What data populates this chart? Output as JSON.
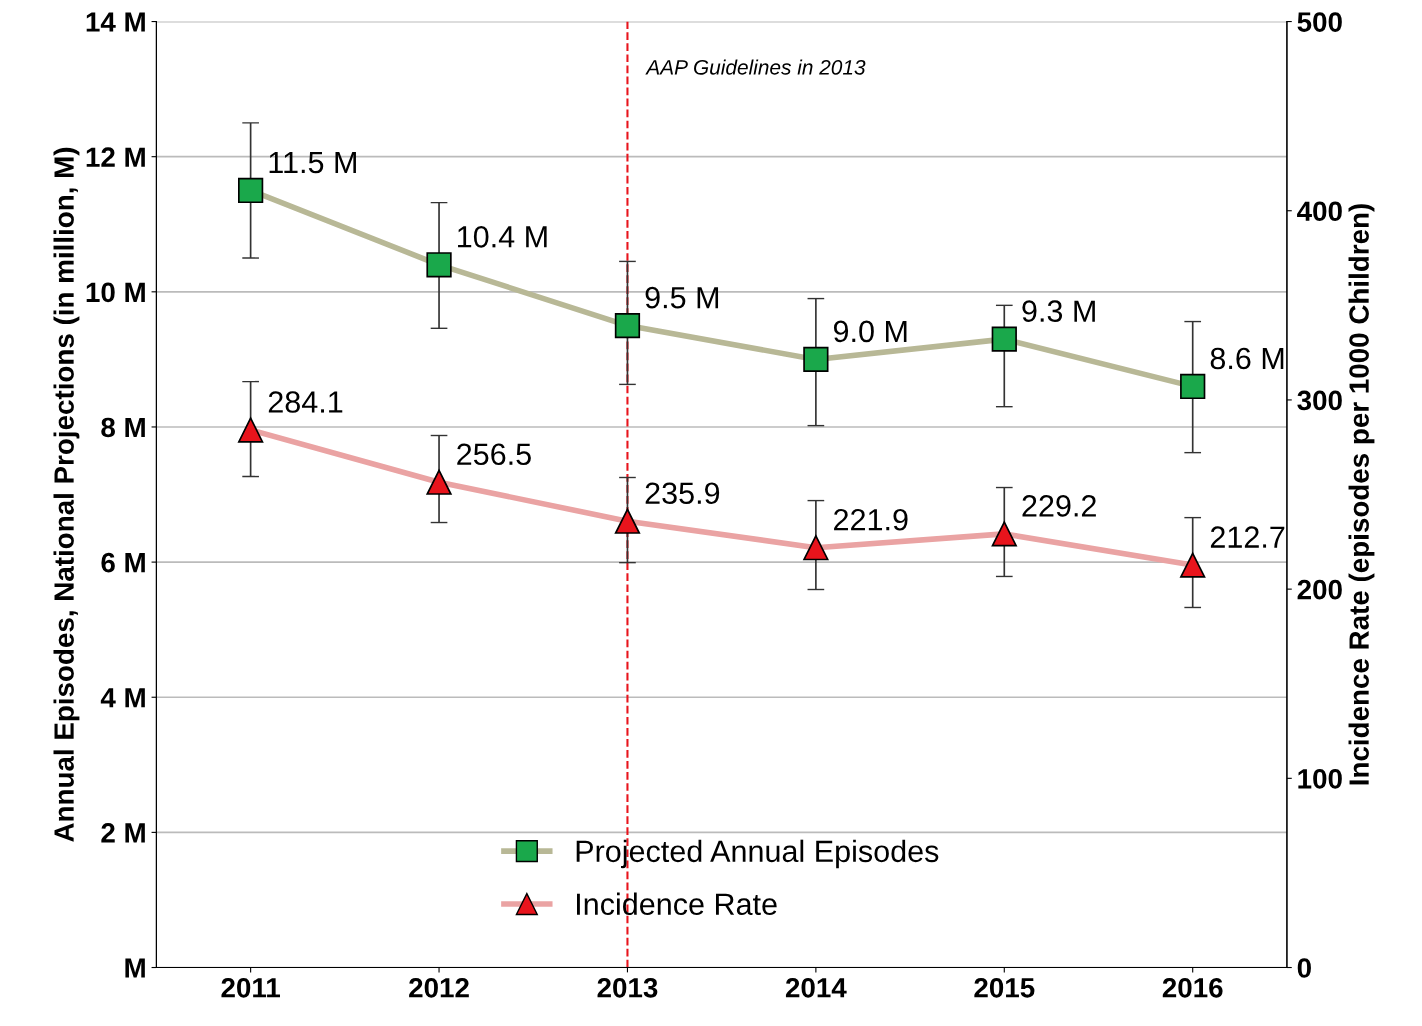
{
  "chart_data": {
    "type": "line",
    "ylabel": "Annual Episodes, National Projections (in million, M)",
    "y2label": "Incidence Rate (episodes per 1000 Children)",
    "categories": [
      "2011",
      "2012",
      "2013",
      "2014",
      "2015",
      "2016"
    ],
    "series": [
      {
        "name": "Projected Annual Episodes",
        "color": "#b8b896",
        "colors": [
          "#1aa84b",
          "#1aa84b",
          "#1aa84b",
          "#1aa84b",
          "#1aa84b",
          "#1aa84b"
        ],
        "marker": "square",
        "values": [
          11.5,
          10.4,
          9.5,
          9.0,
          9.3,
          8.6
        ],
        "value_labels": [
          "11.5 M",
          "10.4 M",
          "9.5 M",
          "9.0 M",
          "9.3 M",
          "8.6 M"
        ],
        "errors": [
          [
            10.5,
            12.5
          ],
          [
            9.46,
            11.32
          ],
          [
            8.63,
            10.45
          ],
          [
            8.02,
            9.9
          ],
          [
            8.3,
            9.8
          ],
          [
            7.62,
            9.56
          ]
        ]
      },
      {
        "name": "Incidence Rate",
        "color": "#eaa3a3",
        "colors": [
          "#e8141c",
          "#e8141c",
          "#e8141c",
          "#e8141c",
          "#e8141c",
          "#e8141c"
        ],
        "marker": "triangle",
        "axis": "y2",
        "values": [
          284.1,
          256.5,
          235.9,
          221.9,
          229.2,
          212.7
        ],
        "value_labels": [
          "284.1",
          "256.5",
          "235.9",
          "221.9",
          "229.2",
          "212.7"
        ],
        "errors": [
          [
            259.5,
            309.7
          ],
          [
            235.2,
            281.2
          ],
          [
            214,
            259
          ],
          [
            199.8,
            246.8
          ],
          [
            206.7,
            253.7
          ],
          [
            190.3,
            237.8
          ]
        ]
      }
    ],
    "ylim": [
      0,
      14
    ],
    "yticks": [
      {
        "value": 0,
        "label": "M"
      },
      {
        "value": 2,
        "label": "2 M"
      },
      {
        "value": 4,
        "label": "4 M"
      },
      {
        "value": 6,
        "label": "6 M"
      },
      {
        "value": 8,
        "label": "8 M"
      },
      {
        "value": 10,
        "label": "10 M"
      },
      {
        "value": 12,
        "label": "12 M"
      },
      {
        "value": 14,
        "label": "14 M"
      }
    ],
    "y2lim": [
      0,
      500
    ],
    "y2ticks": [
      0,
      100,
      200,
      300,
      400,
      500
    ],
    "ref_lines": [
      {
        "axis": "x",
        "value": "2013",
        "label": "AAP Guidelines in 2013",
        "color": "#e8141c",
        "line_style": "dashed"
      }
    ],
    "grid": "y",
    "legend": "bottom"
  }
}
